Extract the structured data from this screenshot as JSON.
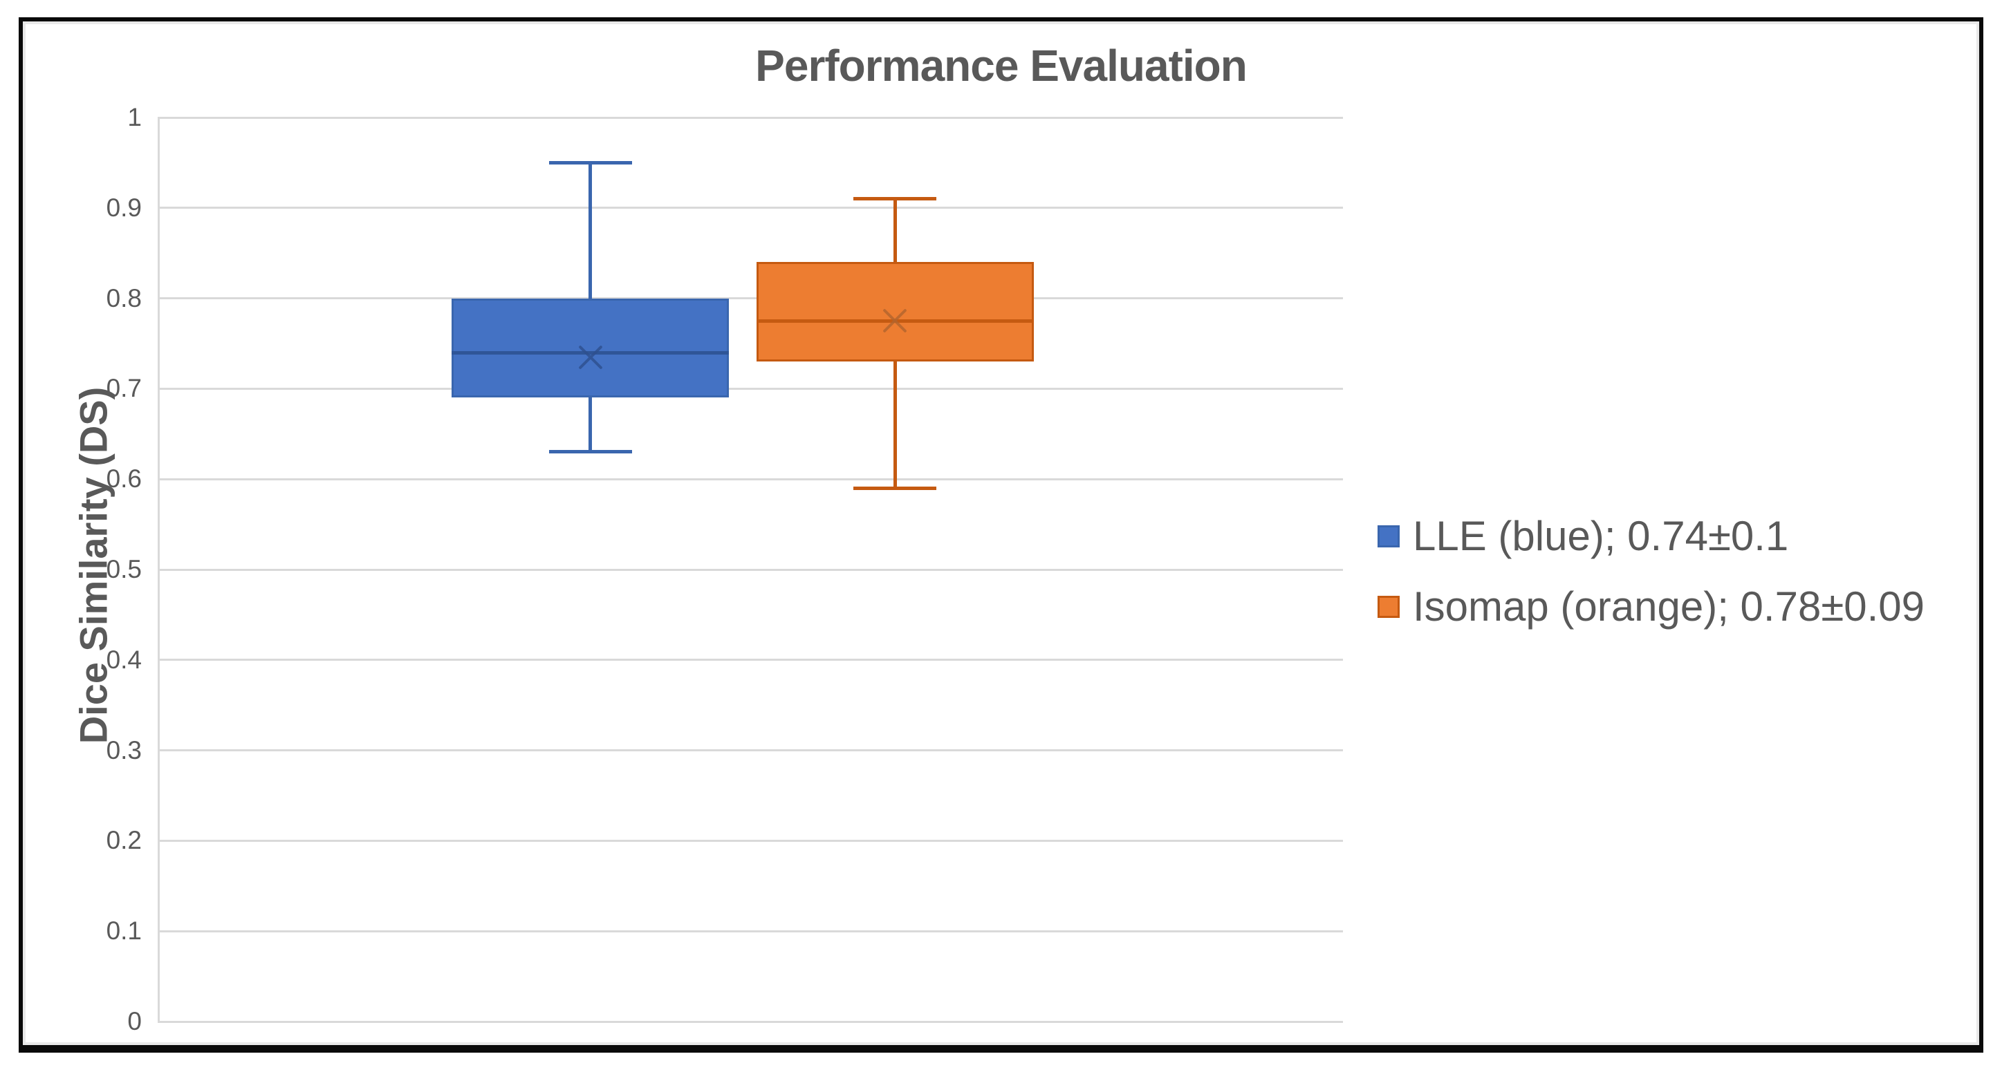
{
  "title": "Performance Evaluation",
  "chart_data": {
    "type": "boxplot",
    "title": "Performance Evaluation",
    "ylabel": "Dice Similarity (DS)",
    "ylim": [
      0,
      1
    ],
    "ytick_step": 0.1,
    "y_ticks": [
      "1",
      "0.9",
      "0.8",
      "0.7",
      "0.6",
      "0.5",
      "0.4",
      "0.3",
      "0.2",
      "0.1",
      "0"
    ],
    "grid": true,
    "legend_position": "right",
    "gridline_color": "#d9d9d9",
    "text_color": "#595959",
    "series": [
      {
        "name": "LLE",
        "legend_label": "LLE (blue); 0.74±0.1",
        "min": 0.63,
        "q1": 0.69,
        "median": 0.74,
        "q3": 0.8,
        "max": 0.95,
        "mean": 0.735,
        "color": "#4472C4",
        "border_color": "#3A66AE",
        "median_color": "#2F5597",
        "mean_color": "#2E508E",
        "center_frac": 0.365,
        "box_width_frac": 0.234
      },
      {
        "name": "Isomap",
        "legend_label": "Isomap (orange); 0.78±0.09",
        "min": 0.59,
        "q1": 0.73,
        "median": 0.775,
        "q3": 0.84,
        "max": 0.91,
        "mean": 0.775,
        "color": "#ED7D31",
        "border_color": "#C55A11",
        "median_color": "#C55A11",
        "mean_color": "#B2652E",
        "center_frac": 0.622,
        "box_width_frac": 0.234
      }
    ]
  }
}
